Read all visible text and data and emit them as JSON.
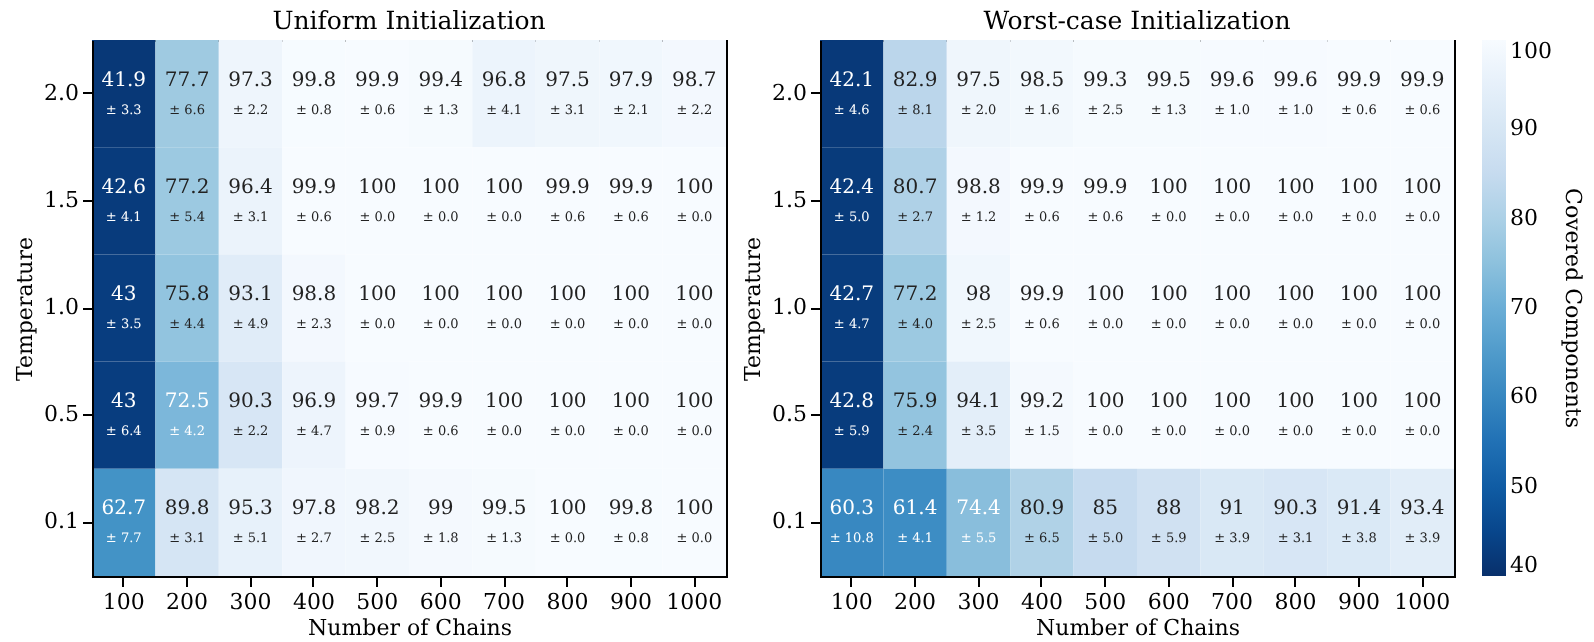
{
  "chart_data": [
    {
      "type": "heatmap",
      "title": "Uniform Initialization",
      "xlabel": "Number of Chains",
      "ylabel": "Temperature",
      "categories": [
        "100",
        "200",
        "300",
        "400",
        "500",
        "600",
        "700",
        "800",
        "900",
        "1000"
      ],
      "y_categories": [
        "2.0",
        "1.5",
        "1.0",
        "0.5",
        "0.1"
      ],
      "data_labels": true,
      "cells": [
        [
          41.9,
          77.7,
          97.3,
          99.8,
          99.9,
          99.4,
          96.8,
          97.5,
          97.9,
          98.7
        ],
        [
          42.6,
          77.2,
          96.4,
          99.9,
          100,
          100,
          100,
          99.9,
          99.9,
          100
        ],
        [
          43,
          75.8,
          93.1,
          98.8,
          100,
          100,
          100,
          100,
          100,
          100
        ],
        [
          43,
          72.5,
          90.3,
          96.9,
          99.7,
          99.9,
          100,
          100,
          100,
          100
        ],
        [
          62.7,
          89.8,
          95.3,
          97.8,
          98.2,
          99,
          99.5,
          100,
          99.8,
          100
        ]
      ],
      "annotations": [
        "± 3.3",
        "± 6.6",
        "± 2.2",
        "± 0.8",
        "± 0.6",
        "± 1.3",
        "± 4.1",
        "± 3.1",
        "± 2.1",
        "± 2.2",
        "± 4.1",
        "± 5.4",
        "± 3.1",
        "± 0.6",
        "± 0.0",
        "± 0.0",
        "± 0.0",
        "± 0.6",
        "± 0.6",
        "± 0.0",
        "± 3.5",
        "± 4.4",
        "± 4.9",
        "± 2.3",
        "± 0.0",
        "± 0.0",
        "± 0.0",
        "± 0.0",
        "± 0.0",
        "± 0.0",
        "± 6.4",
        "± 4.2",
        "± 2.2",
        "± 4.7",
        "± 0.9",
        "± 0.6",
        "± 0.0",
        "± 0.0",
        "± 0.0",
        "± 0.0",
        "± 7.7",
        "± 3.1",
        "± 5.1",
        "± 2.7",
        "± 2.5",
        "± 1.8",
        "± 1.3",
        "± 0.0",
        "± 0.8",
        "± 0.0"
      ]
    },
    {
      "type": "heatmap",
      "title": "Worst-case Initialization",
      "xlabel": "Number of Chains",
      "ylabel": "Temperature",
      "clabel": "Covered Components",
      "categories": [
        "100",
        "200",
        "300",
        "400",
        "500",
        "600",
        "700",
        "800",
        "900",
        "1000"
      ],
      "y_categories": [
        "2.0",
        "1.5",
        "1.0",
        "0.5",
        "0.1"
      ],
      "clim": [
        40,
        100
      ],
      "cticks": [
        40,
        50,
        60,
        70,
        80,
        90,
        100
      ],
      "data_labels": true,
      "cells": [
        [
          42.1,
          82.9,
          97.5,
          98.5,
          99.3,
          99.5,
          99.6,
          99.6,
          99.9,
          99.9
        ],
        [
          42.4,
          80.7,
          98.8,
          99.9,
          99.9,
          100,
          100,
          100,
          100,
          100
        ],
        [
          42.7,
          77.2,
          98,
          99.9,
          100,
          100,
          100,
          100,
          100,
          100
        ],
        [
          42.8,
          75.9,
          94.1,
          99.2,
          100,
          100,
          100,
          100,
          100,
          100
        ],
        [
          60.3,
          61.4,
          74.4,
          80.9,
          85,
          88,
          91,
          90.3,
          91.4,
          93.4
        ]
      ],
      "annotations": [
        "± 4.6",
        "± 8.1",
        "± 2.0",
        "± 1.6",
        "± 2.5",
        "± 1.3",
        "± 1.0",
        "± 1.0",
        "± 0.6",
        "± 0.6",
        "± 5.0",
        "± 2.7",
        "± 1.2",
        "± 0.6",
        "± 0.6",
        "± 0.0",
        "± 0.0",
        "± 0.0",
        "± 0.0",
        "± 0.0",
        "± 4.7",
        "± 4.0",
        "± 2.5",
        "± 0.6",
        "± 0.0",
        "± 0.0",
        "± 0.0",
        "± 0.0",
        "± 0.0",
        "± 0.0",
        "± 5.9",
        "± 2.4",
        "± 3.5",
        "± 1.5",
        "± 0.0",
        "± 0.0",
        "± 0.0",
        "± 0.0",
        "± 0.0",
        "± 0.0",
        "± 10.8",
        "± 4.1",
        "± 5.5",
        "± 6.5",
        "± 5.0",
        "± 5.9",
        "± 3.9",
        "± 3.1",
        "± 3.8",
        "± 3.9"
      ]
    }
  ]
}
